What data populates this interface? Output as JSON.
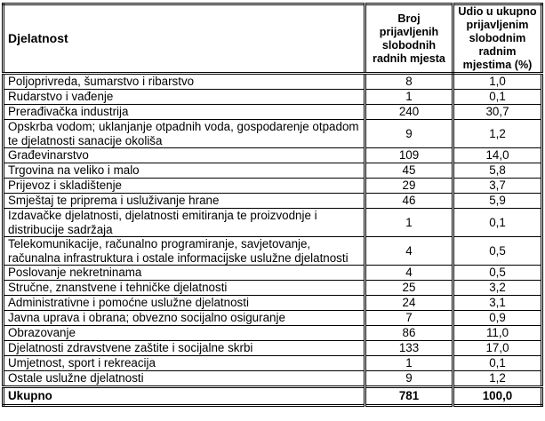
{
  "table": {
    "headers": [
      "Djelatnost",
      "Broj prijavljenih slobodnih radnih mjesta",
      "Udio u ukupno prijavljenim slobodnim radnim mjestima (%)"
    ],
    "rows": [
      [
        "Poljoprivreda, šumarstvo i ribarstvo",
        "8",
        "1,0"
      ],
      [
        "Rudarstvo i vađenje",
        "1",
        "0,1"
      ],
      [
        "Prerađivačka industrija",
        "240",
        "30,7"
      ],
      [
        "Opskrba vodom; uklanjanje otpadnih voda, gospodarenje otpadom te djelatnosti sanacije okoliša",
        "9",
        "1,2"
      ],
      [
        "Građevinarstvo",
        "109",
        "14,0"
      ],
      [
        "Trgovina na veliko i malo",
        "45",
        "5,8"
      ],
      [
        "Prijevoz i skladištenje",
        "29",
        "3,7"
      ],
      [
        "Smještaj te priprema i usluživanje hrane",
        "46",
        "5,9"
      ],
      [
        "Izdavačke djelatnosti, djelatnosti emitiranja te proizvodnje i distribucije sadržaja",
        "1",
        "0,1"
      ],
      [
        "Telekomunikacije, računalno programiranje, savjetovanje, računalna infrastruktura i ostale informacijske uslužne djelatnosti",
        "4",
        "0,5"
      ],
      [
        "Poslovanje nekretninama",
        "4",
        "0,5"
      ],
      [
        "Stručne, znanstvene i tehničke djelatnosti",
        "25",
        "3,2"
      ],
      [
        "Administrativne i pomoćne uslužne djelatnosti",
        "24",
        "3,1"
      ],
      [
        "Javna uprava i obrana; obvezno socijalno osiguranje",
        "7",
        "0,9"
      ],
      [
        "Obrazovanje",
        "86",
        "11,0"
      ],
      [
        "Djelatnosti zdravstvene zaštite i socijalne skrbi",
        "133",
        "17,0"
      ],
      [
        "Umjetnost, sport i rekreacija",
        "1",
        "0,1"
      ],
      [
        "Ostale uslužne djelatnosti",
        "9",
        "1,2"
      ]
    ],
    "total": [
      "Ukupno",
      "781",
      "100,0"
    ]
  }
}
